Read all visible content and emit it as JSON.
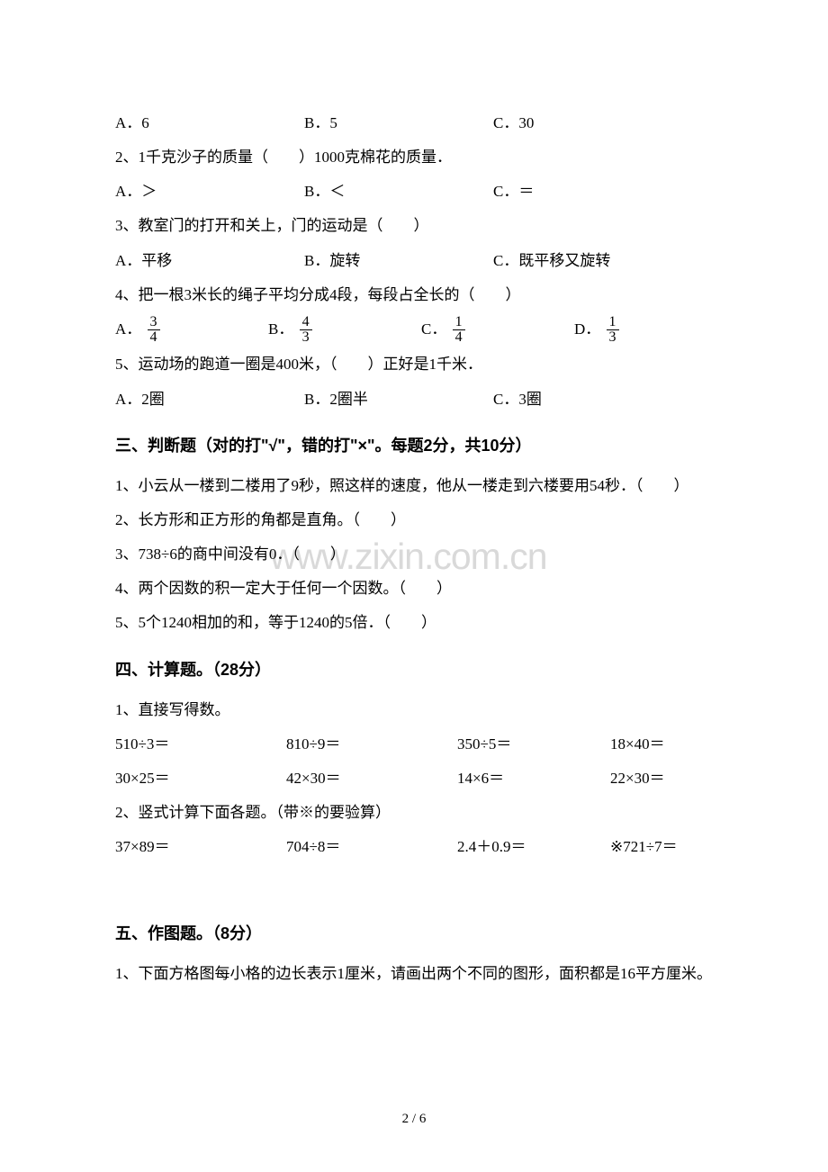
{
  "q1": {
    "opts": [
      "A．6",
      "B．5",
      "C．30"
    ]
  },
  "q2": {
    "text": "2、1千克沙子的质量（　　）1000克棉花的质量．",
    "opts": [
      "A．＞",
      "B．＜",
      "C．＝"
    ]
  },
  "q3": {
    "text": "3、教室门的打开和关上，门的运动是（　　）",
    "opts": [
      "A．平移",
      "B．旋转",
      "C．既平移又旋转"
    ]
  },
  "q4": {
    "text": "4、把一根3米长的绳子平均分成4段，每段占全长的（　　）",
    "labels": [
      "A．",
      "B．",
      "C．",
      "D．"
    ],
    "fracs": [
      [
        "3",
        "4"
      ],
      [
        "4",
        "3"
      ],
      [
        "1",
        "4"
      ],
      [
        "1",
        "3"
      ]
    ]
  },
  "q5": {
    "text": "5、运动场的跑道一圈是400米，（　　）正好是1千米．",
    "opts": [
      "A．2圈",
      "B．2圈半",
      "C．3圈"
    ]
  },
  "section3": {
    "title": "三、判断题（对的打\"√\"，错的打\"×\"。每题2分，共10分）",
    "items": [
      "1、小云从一楼到二楼用了9秒，照这样的速度，他从一楼走到六楼要用54秒．（　　）",
      "2、长方形和正方形的角都是直角。（　　）",
      "3、738÷6的商中间没有0．（　　）",
      "4、两个因数的积一定大于任何一个因数。（　　）",
      "5、5个1240相加的和，等于1240的5倍．（　　）"
    ]
  },
  "section4": {
    "title": "四、计算题。（28分）",
    "sub1": "1、直接写得数。",
    "row1": [
      "510÷3＝",
      "810÷9＝",
      "350÷5＝",
      "18×40＝"
    ],
    "row2": [
      "30×25＝",
      "42×30＝",
      "14×6＝",
      "22×30＝"
    ],
    "sub2": "2、竖式计算下面各题。（带※的要验算）",
    "row3": [
      "37×89＝",
      "704÷8＝",
      "2.4＋0.9＝",
      "※721÷7＝"
    ]
  },
  "section5": {
    "title": "五、作图题。（8分）",
    "item1": "1、下面方格图每小格的边长表示1厘米，请画出两个不同的图形，面积都是16平方厘米。"
  },
  "watermark": "www.zixin.com.cn",
  "footer": "2 / 6"
}
